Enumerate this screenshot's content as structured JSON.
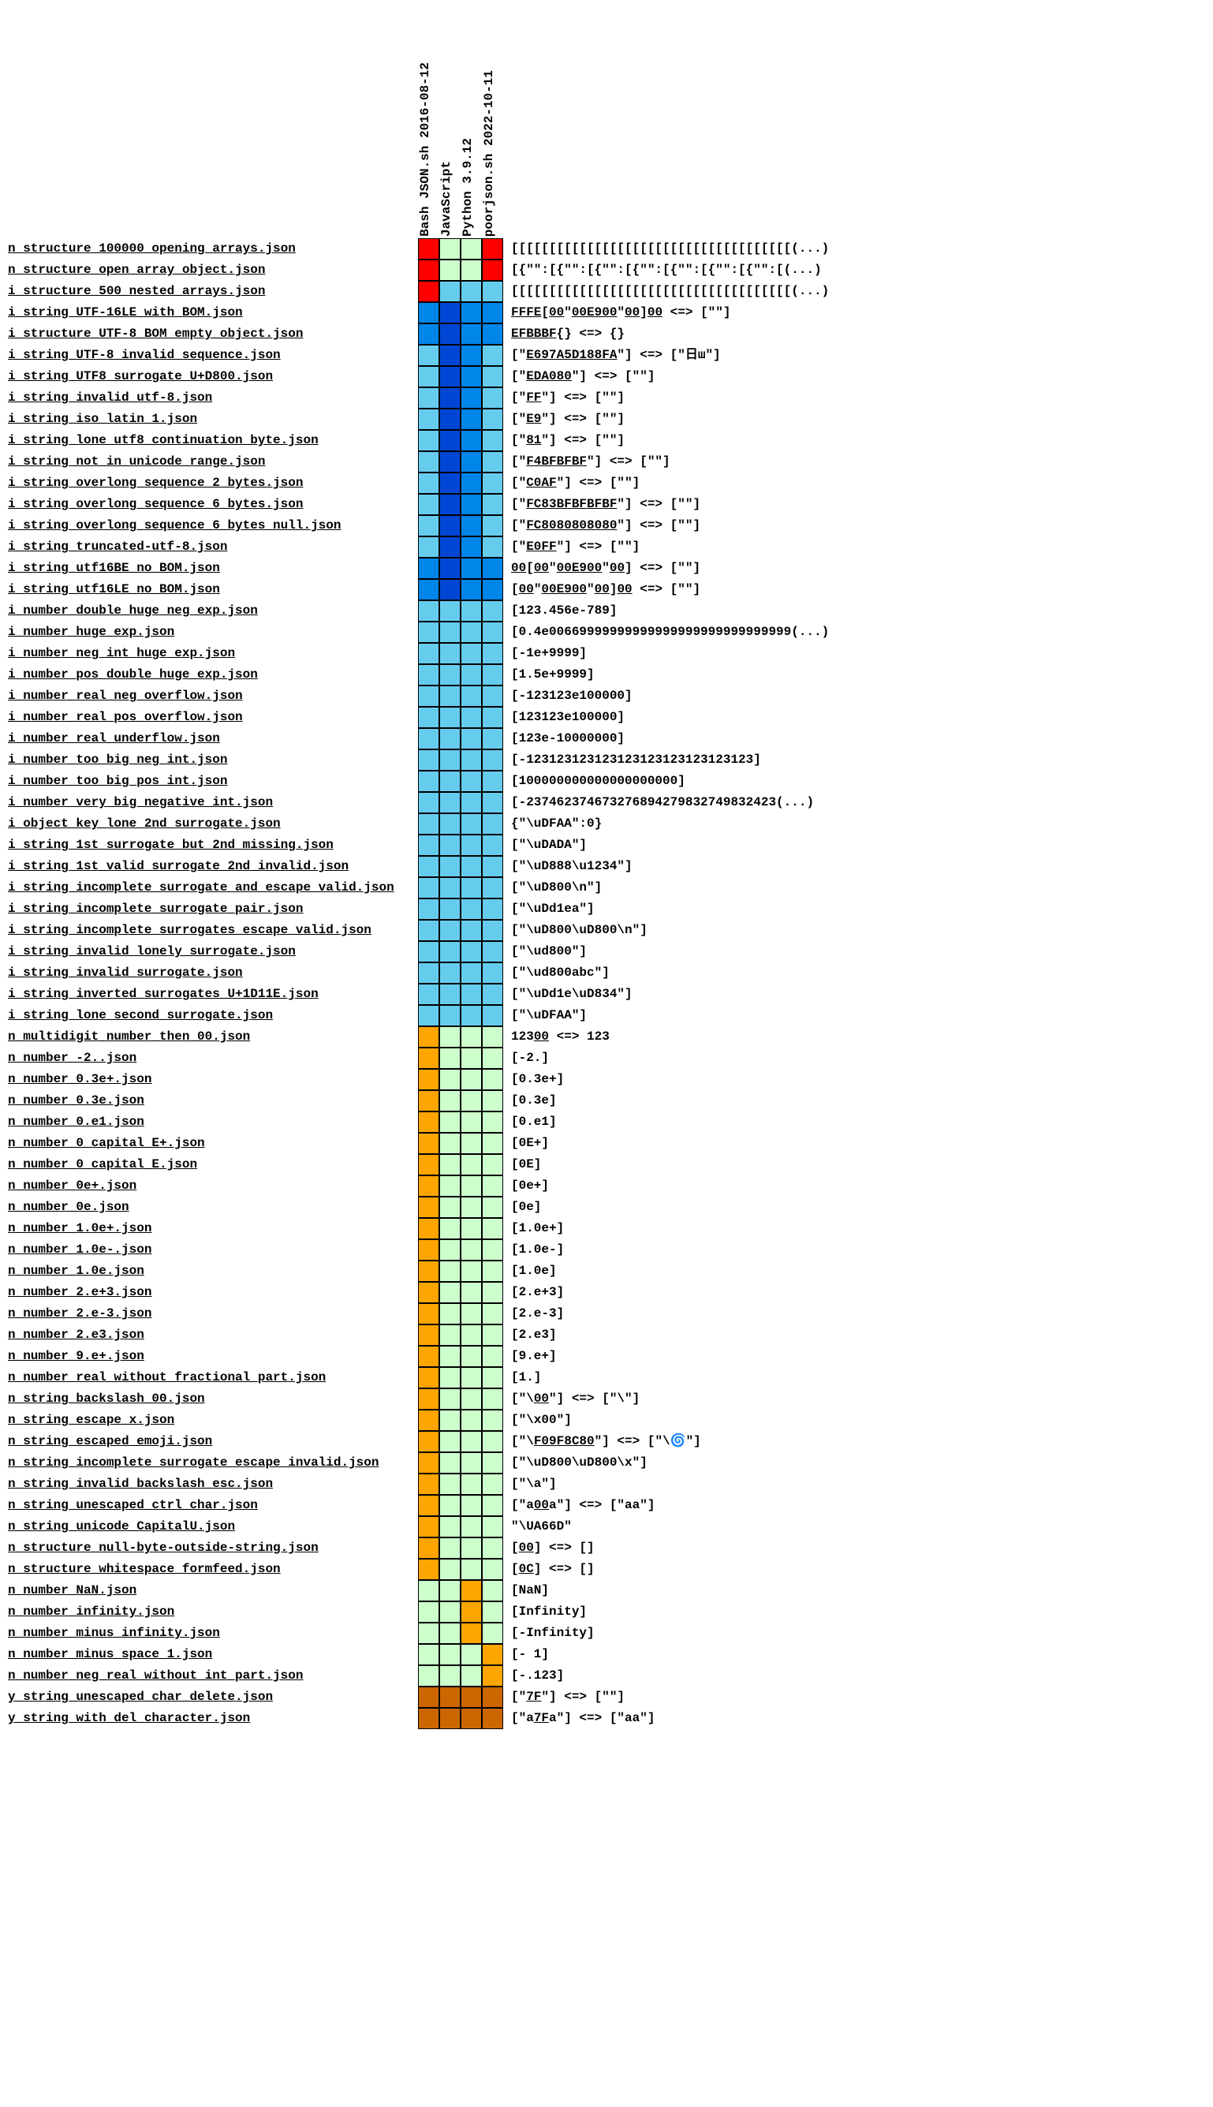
{
  "colors": {
    "red": "#ff0000",
    "darkblue": "#0046d4",
    "midblue": "#0085e9",
    "lightblue": "#66ccee",
    "orange": "#ffa500",
    "lightgreen": "#ccffcc",
    "darkorange": "#cc6600"
  },
  "columns": [
    "Bash JSON.sh 2016-08-12",
    "JavaScript",
    "Python 3.9.12",
    "poorjson.sh 2022-10-11"
  ],
  "rows": [
    {
      "label": "n_structure_100000_opening_arrays.json",
      "cells": [
        "red",
        "lightgreen",
        "lightgreen",
        "red"
      ],
      "content": "[[[[[[[[[[[[[[[[[[[[[[[[[[[[[[[[[[[[[(...)"
    },
    {
      "label": "n_structure_open_array_object.json",
      "cells": [
        "red",
        "lightgreen",
        "lightgreen",
        "red"
      ],
      "content": "[{\"\":[{\"\":[{\"\":[{\"\":[{\"\":[{\"\":[{\"\":[(...)"
    },
    {
      "label": "i_structure_500_nested_arrays.json",
      "cells": [
        "red",
        "lightblue",
        "lightblue",
        "lightblue"
      ],
      "content": "[[[[[[[[[[[[[[[[[[[[[[[[[[[[[[[[[[[[[(...)"
    },
    {
      "label": "i_string_UTF-16LE_with_BOM.json",
      "cells": [
        "midblue",
        "darkblue",
        "midblue",
        "midblue"
      ],
      "content": "<u>FFFE</u>[<u>00</u>\"<u>00E900</u>\"<u>00</u>]<u>00</u> <=> [\"\"]"
    },
    {
      "label": "i_structure_UTF-8_BOM_empty_object.json",
      "cells": [
        "midblue",
        "darkblue",
        "midblue",
        "midblue"
      ],
      "content": "<u>EFBBBF</u>{} <=> {}"
    },
    {
      "label": "i_string_UTF-8_invalid_sequence.json",
      "cells": [
        "lightblue",
        "darkblue",
        "midblue",
        "lightblue"
      ],
      "content": "[\"<u>E697A5D188FA</u>\"] <=> [\"日ш\"]"
    },
    {
      "label": "i_string_UTF8_surrogate_U+D800.json",
      "cells": [
        "lightblue",
        "darkblue",
        "midblue",
        "lightblue"
      ],
      "content": "[\"<u>EDA080</u>\"] <=> [\"\"]"
    },
    {
      "label": "i_string_invalid_utf-8.json",
      "cells": [
        "lightblue",
        "darkblue",
        "midblue",
        "lightblue"
      ],
      "content": "[\"<u>FF</u>\"] <=> [\"\"]"
    },
    {
      "label": "i_string_iso_latin_1.json",
      "cells": [
        "lightblue",
        "darkblue",
        "midblue",
        "lightblue"
      ],
      "content": "[\"<u>E9</u>\"] <=> [\"\"]"
    },
    {
      "label": "i_string_lone_utf8_continuation_byte.json",
      "cells": [
        "lightblue",
        "darkblue",
        "midblue",
        "lightblue"
      ],
      "content": "[\"<u>81</u>\"] <=> [\"\"]"
    },
    {
      "label": "i_string_not_in_unicode_range.json",
      "cells": [
        "lightblue",
        "darkblue",
        "midblue",
        "lightblue"
      ],
      "content": "[\"<u>F4BFBFBF</u>\"] <=> [\"\"]"
    },
    {
      "label": "i_string_overlong_sequence_2_bytes.json",
      "cells": [
        "lightblue",
        "darkblue",
        "midblue",
        "lightblue"
      ],
      "content": "[\"<u>C0AF</u>\"] <=> [\"\"]"
    },
    {
      "label": "i_string_overlong_sequence_6_bytes.json",
      "cells": [
        "lightblue",
        "darkblue",
        "midblue",
        "lightblue"
      ],
      "content": "[\"<u>FC83BFBFBFBF</u>\"] <=> [\"\"]"
    },
    {
      "label": "i_string_overlong_sequence_6_bytes_null.json",
      "cells": [
        "lightblue",
        "darkblue",
        "midblue",
        "lightblue"
      ],
      "content": "[\"<u>FC8080808080</u>\"] <=> [\"\"]"
    },
    {
      "label": "i_string_truncated-utf-8.json",
      "cells": [
        "lightblue",
        "darkblue",
        "midblue",
        "lightblue"
      ],
      "content": "[\"<u>E0FF</u>\"] <=> [\"\"]"
    },
    {
      "label": "i_string_utf16BE_no_BOM.json",
      "cells": [
        "midblue",
        "darkblue",
        "midblue",
        "midblue"
      ],
      "content": "<u>00</u>[<u>00</u>\"<u>00E900</u>\"<u>00</u>] <=> [\"\"]"
    },
    {
      "label": "i_string_utf16LE_no_BOM.json",
      "cells": [
        "midblue",
        "darkblue",
        "midblue",
        "midblue"
      ],
      "content": "[<u>00</u>\"<u>00E900</u>\"<u>00</u>]<u>00</u> <=> [\"\"]"
    },
    {
      "label": "i_number_double_huge_neg_exp.json",
      "cells": [
        "lightblue",
        "lightblue",
        "lightblue",
        "lightblue"
      ],
      "content": "[123.456e-789]"
    },
    {
      "label": "i_number_huge_exp.json",
      "cells": [
        "lightblue",
        "lightblue",
        "lightblue",
        "lightblue"
      ],
      "content": "[0.4e00669999999999999999999999999999(...)"
    },
    {
      "label": "i_number_neg_int_huge_exp.json",
      "cells": [
        "lightblue",
        "lightblue",
        "lightblue",
        "lightblue"
      ],
      "content": "[-1e+9999]"
    },
    {
      "label": "i_number_pos_double_huge_exp.json",
      "cells": [
        "lightblue",
        "lightblue",
        "lightblue",
        "lightblue"
      ],
      "content": "[1.5e+9999]"
    },
    {
      "label": "i_number_real_neg_overflow.json",
      "cells": [
        "lightblue",
        "lightblue",
        "lightblue",
        "lightblue"
      ],
      "content": "[-123123e100000]"
    },
    {
      "label": "i_number_real_pos_overflow.json",
      "cells": [
        "lightblue",
        "lightblue",
        "lightblue",
        "lightblue"
      ],
      "content": "[123123e100000]"
    },
    {
      "label": "i_number_real_underflow.json",
      "cells": [
        "lightblue",
        "lightblue",
        "lightblue",
        "lightblue"
      ],
      "content": "[123e-10000000]"
    },
    {
      "label": "i_number_too_big_neg_int.json",
      "cells": [
        "lightblue",
        "lightblue",
        "lightblue",
        "lightblue"
      ],
      "content": "[-123123123123123123123123123123]"
    },
    {
      "label": "i_number_too_big_pos_int.json",
      "cells": [
        "lightblue",
        "lightblue",
        "lightblue",
        "lightblue"
      ],
      "content": "[100000000000000000000]"
    },
    {
      "label": "i_number_very_big_negative_int.json",
      "cells": [
        "lightblue",
        "lightblue",
        "lightblue",
        "lightblue"
      ],
      "content": "[-237462374673276894279832749832423(...)"
    },
    {
      "label": "i_object_key_lone_2nd_surrogate.json",
      "cells": [
        "lightblue",
        "lightblue",
        "lightblue",
        "lightblue"
      ],
      "content": "{\"\\uDFAA\":0}"
    },
    {
      "label": "i_string_1st_surrogate_but_2nd_missing.json",
      "cells": [
        "lightblue",
        "lightblue",
        "lightblue",
        "lightblue"
      ],
      "content": "[\"\\uDADA\"]"
    },
    {
      "label": "i_string_1st_valid_surrogate_2nd_invalid.json",
      "cells": [
        "lightblue",
        "lightblue",
        "lightblue",
        "lightblue"
      ],
      "content": "[\"\\uD888\\u1234\"]"
    },
    {
      "label": "i_string_incomplete_surrogate_and_escape_valid.json",
      "cells": [
        "lightblue",
        "lightblue",
        "lightblue",
        "lightblue"
      ],
      "content": "[\"\\uD800\\n\"]"
    },
    {
      "label": "i_string_incomplete_surrogate_pair.json",
      "cells": [
        "lightblue",
        "lightblue",
        "lightblue",
        "lightblue"
      ],
      "content": "[\"\\uDd1ea\"]"
    },
    {
      "label": "i_string_incomplete_surrogates_escape_valid.json",
      "cells": [
        "lightblue",
        "lightblue",
        "lightblue",
        "lightblue"
      ],
      "content": "[\"\\uD800\\uD800\\n\"]"
    },
    {
      "label": "i_string_invalid_lonely_surrogate.json",
      "cells": [
        "lightblue",
        "lightblue",
        "lightblue",
        "lightblue"
      ],
      "content": "[\"\\ud800\"]"
    },
    {
      "label": "i_string_invalid_surrogate.json",
      "cells": [
        "lightblue",
        "lightblue",
        "lightblue",
        "lightblue"
      ],
      "content": "[\"\\ud800abc\"]"
    },
    {
      "label": "i_string_inverted_surrogates_U+1D11E.json",
      "cells": [
        "lightblue",
        "lightblue",
        "lightblue",
        "lightblue"
      ],
      "content": "[\"\\uDd1e\\uD834\"]"
    },
    {
      "label": "i_string_lone_second_surrogate.json",
      "cells": [
        "lightblue",
        "lightblue",
        "lightblue",
        "lightblue"
      ],
      "content": "[\"\\uDFAA\"]"
    },
    {
      "label": "n_multidigit_number_then_00.json",
      "cells": [
        "orange",
        "lightgreen",
        "lightgreen",
        "lightgreen"
      ],
      "content": "123<u>00</u> <=> 123"
    },
    {
      "label": "n_number_-2..json",
      "cells": [
        "orange",
        "lightgreen",
        "lightgreen",
        "lightgreen"
      ],
      "content": "[-2.]"
    },
    {
      "label": "n_number_0.3e+.json",
      "cells": [
        "orange",
        "lightgreen",
        "lightgreen",
        "lightgreen"
      ],
      "content": "[0.3e+]"
    },
    {
      "label": "n_number_0.3e.json",
      "cells": [
        "orange",
        "lightgreen",
        "lightgreen",
        "lightgreen"
      ],
      "content": "[0.3e]"
    },
    {
      "label": "n_number_0.e1.json",
      "cells": [
        "orange",
        "lightgreen",
        "lightgreen",
        "lightgreen"
      ],
      "content": "[0.e1]"
    },
    {
      "label": "n_number_0_capital_E+.json",
      "cells": [
        "orange",
        "lightgreen",
        "lightgreen",
        "lightgreen"
      ],
      "content": "[0E+]"
    },
    {
      "label": "n_number_0_capital_E.json",
      "cells": [
        "orange",
        "lightgreen",
        "lightgreen",
        "lightgreen"
      ],
      "content": "[0E]"
    },
    {
      "label": "n_number_0e+.json",
      "cells": [
        "orange",
        "lightgreen",
        "lightgreen",
        "lightgreen"
      ],
      "content": "[0e+]"
    },
    {
      "label": "n_number_0e.json",
      "cells": [
        "orange",
        "lightgreen",
        "lightgreen",
        "lightgreen"
      ],
      "content": "[0e]"
    },
    {
      "label": "n_number_1.0e+.json",
      "cells": [
        "orange",
        "lightgreen",
        "lightgreen",
        "lightgreen"
      ],
      "content": "[1.0e+]"
    },
    {
      "label": "n_number_1.0e-.json",
      "cells": [
        "orange",
        "lightgreen",
        "lightgreen",
        "lightgreen"
      ],
      "content": "[1.0e-]"
    },
    {
      "label": "n_number_1.0e.json",
      "cells": [
        "orange",
        "lightgreen",
        "lightgreen",
        "lightgreen"
      ],
      "content": "[1.0e]"
    },
    {
      "label": "n_number_2.e+3.json",
      "cells": [
        "orange",
        "lightgreen",
        "lightgreen",
        "lightgreen"
      ],
      "content": "[2.e+3]"
    },
    {
      "label": "n_number_2.e-3.json",
      "cells": [
        "orange",
        "lightgreen",
        "lightgreen",
        "lightgreen"
      ],
      "content": "[2.e-3]"
    },
    {
      "label": "n_number_2.e3.json",
      "cells": [
        "orange",
        "lightgreen",
        "lightgreen",
        "lightgreen"
      ],
      "content": "[2.e3]"
    },
    {
      "label": "n_number_9.e+.json",
      "cells": [
        "orange",
        "lightgreen",
        "lightgreen",
        "lightgreen"
      ],
      "content": "[9.e+]"
    },
    {
      "label": "n_number_real_without_fractional_part.json",
      "cells": [
        "orange",
        "lightgreen",
        "lightgreen",
        "lightgreen"
      ],
      "content": "[1.]"
    },
    {
      "label": "n_string_backslash_00.json",
      "cells": [
        "orange",
        "lightgreen",
        "lightgreen",
        "lightgreen"
      ],
      "content": "[\"\\<u>00</u>\"] <=> [\"\\\"]"
    },
    {
      "label": "n_string_escape_x.json",
      "cells": [
        "orange",
        "lightgreen",
        "lightgreen",
        "lightgreen"
      ],
      "content": "[\"\\x00\"]"
    },
    {
      "label": "n_string_escaped_emoji.json",
      "cells": [
        "orange",
        "lightgreen",
        "lightgreen",
        "lightgreen"
      ],
      "content": "[\"\\<u>F09F8C80</u>\"] <=> [\"\\🌀\"]"
    },
    {
      "label": "n_string_incomplete_surrogate_escape_invalid.json",
      "cells": [
        "orange",
        "lightgreen",
        "lightgreen",
        "lightgreen"
      ],
      "content": "[\"\\uD800\\uD800\\x\"]"
    },
    {
      "label": "n_string_invalid_backslash_esc.json",
      "cells": [
        "orange",
        "lightgreen",
        "lightgreen",
        "lightgreen"
      ],
      "content": "[\"\\a\"]"
    },
    {
      "label": "n_string_unescaped_ctrl_char.json",
      "cells": [
        "orange",
        "lightgreen",
        "lightgreen",
        "lightgreen"
      ],
      "content": "[\"a<u>00</u>a\"] <=> [\"aa\"]"
    },
    {
      "label": "n_string_unicode_CapitalU.json",
      "cells": [
        "orange",
        "lightgreen",
        "lightgreen",
        "lightgreen"
      ],
      "content": "\"\\UA66D\""
    },
    {
      "label": "n_structure_null-byte-outside-string.json",
      "cells": [
        "orange",
        "lightgreen",
        "lightgreen",
        "lightgreen"
      ],
      "content": "[<u>00</u>] <=> []"
    },
    {
      "label": "n_structure_whitespace_formfeed.json",
      "cells": [
        "orange",
        "lightgreen",
        "lightgreen",
        "lightgreen"
      ],
      "content": "[<u>0C</u>] <=> []"
    },
    {
      "label": "n_number_NaN.json",
      "cells": [
        "lightgreen",
        "lightgreen",
        "orange",
        "lightgreen"
      ],
      "content": "[NaN]"
    },
    {
      "label": "n_number_infinity.json",
      "cells": [
        "lightgreen",
        "lightgreen",
        "orange",
        "lightgreen"
      ],
      "content": "[Infinity]"
    },
    {
      "label": "n_number_minus_infinity.json",
      "cells": [
        "lightgreen",
        "lightgreen",
        "orange",
        "lightgreen"
      ],
      "content": "[-Infinity]"
    },
    {
      "label": "n_number_minus_space_1.json",
      "cells": [
        "lightgreen",
        "lightgreen",
        "lightgreen",
        "orange"
      ],
      "content": "[- 1]"
    },
    {
      "label": "n_number_neg_real_without_int_part.json",
      "cells": [
        "lightgreen",
        "lightgreen",
        "lightgreen",
        "orange"
      ],
      "content": "[-.123]"
    },
    {
      "label": "y_string_unescaped_char_delete.json",
      "cells": [
        "darkorange",
        "darkorange",
        "darkorange",
        "darkorange"
      ],
      "content": "[\"<u>7F</u>\"] <=> [\"\"]"
    },
    {
      "label": "y_string_with_del_character.json",
      "cells": [
        "darkorange",
        "darkorange",
        "darkorange",
        "darkorange"
      ],
      "content": "[\"a<u>7F</u>a\"] <=> [\"aa\"]"
    }
  ]
}
